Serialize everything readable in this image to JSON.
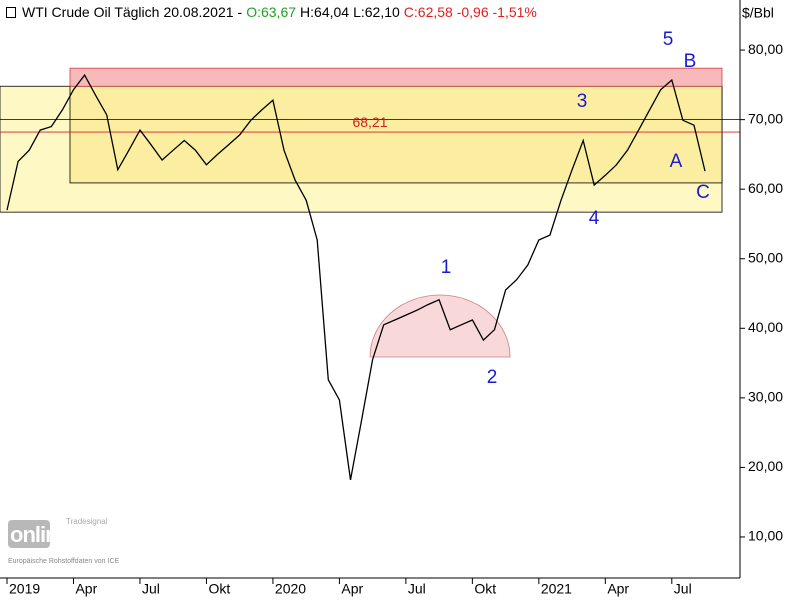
{
  "chart_data": {
    "type": "line",
    "title": "WTI Crude Oil Täglich",
    "date": "20.08.2021",
    "separator": "-",
    "quote": [
      {
        "text": "O:63,67",
        "color": "#22a022"
      },
      {
        "text": "H:64,04",
        "color": "#000000"
      },
      {
        "text": "L:62,10",
        "color": "#000000"
      },
      {
        "text": "C:62,58 -0,96 -1,51%",
        "color": "#e02020"
      }
    ],
    "y_unit": "$/Bbl",
    "categories": [
      "2019",
      null,
      null,
      null,
      null,
      null,
      "Apr",
      null,
      null,
      null,
      null,
      null,
      "Jul",
      null,
      null,
      null,
      null,
      null,
      "Okt",
      null,
      null,
      null,
      null,
      null,
      "2020",
      null,
      null,
      null,
      null,
      null,
      "Apr",
      null,
      null,
      null,
      null,
      null,
      "Jul",
      null,
      null,
      null,
      null,
      null,
      "Okt",
      null,
      null,
      null,
      null,
      null,
      "2021",
      null,
      null,
      null,
      null,
      null,
      "Apr",
      null,
      null,
      null,
      null,
      null,
      "Jul",
      null,
      null,
      null
    ],
    "series": [
      {
        "name": "WTI Crude Oil",
        "color": "#000000",
        "values": [
          57,
          64,
          65.6,
          68.5,
          69,
          71.4,
          74.3,
          76.4,
          73.5,
          70.7,
          62.8,
          65.6,
          68.5,
          66.4,
          64.2,
          65.6,
          67,
          65.6,
          63.5,
          65,
          66.4,
          67.8,
          69.9,
          71.4,
          72.8,
          65.6,
          61.3,
          58.4,
          52.7,
          32.6,
          29.7,
          18.2,
          26.8,
          35.5,
          40.5,
          41.2,
          41.9,
          42.6,
          43.4,
          44.1,
          39.8,
          40.5,
          41.2,
          38.3,
          39.8,
          45.5,
          47,
          49.1,
          52.7,
          53.4,
          58.4,
          62.8,
          67,
          60.6,
          62,
          63.5,
          65.6,
          68.5,
          71.4,
          74.3,
          75.7,
          69.9,
          69.2,
          62.6
        ]
      }
    ],
    "ylim": [
      4.1,
      87.2
    ],
    "yticks": [
      {
        "value": 10,
        "label": "10,00"
      },
      {
        "value": 20,
        "label": "20,00"
      },
      {
        "value": 30,
        "label": "30,00"
      },
      {
        "value": 40,
        "label": "40,00"
      },
      {
        "value": 50,
        "label": "50,00"
      },
      {
        "value": 60,
        "label": "60,00"
      },
      {
        "value": 70,
        "label": "70,00"
      },
      {
        "value": 80,
        "label": "80,00"
      }
    ],
    "zones": [
      {
        "low": 56.7,
        "high": 74.8,
        "color": "#fdf8c4"
      },
      {
        "low": 60.9,
        "high": 74.8,
        "color": "#fbeea0"
      },
      {
        "low": 74.8,
        "high": 77.4,
        "color": "#f7b9b9"
      }
    ],
    "levels": [
      {
        "value": 70,
        "color": "#000000"
      },
      {
        "value": 68.21,
        "label": "68,21",
        "color": "#d02020"
      }
    ],
    "wave_labels": [
      "1",
      "2",
      "3",
      "4",
      "5",
      "A",
      "B",
      "C"
    ],
    "watermark": {
      "brand": "Tradesignal",
      "logo": "online",
      "source": "Europäische Rohstoffdaten von ICE"
    }
  }
}
